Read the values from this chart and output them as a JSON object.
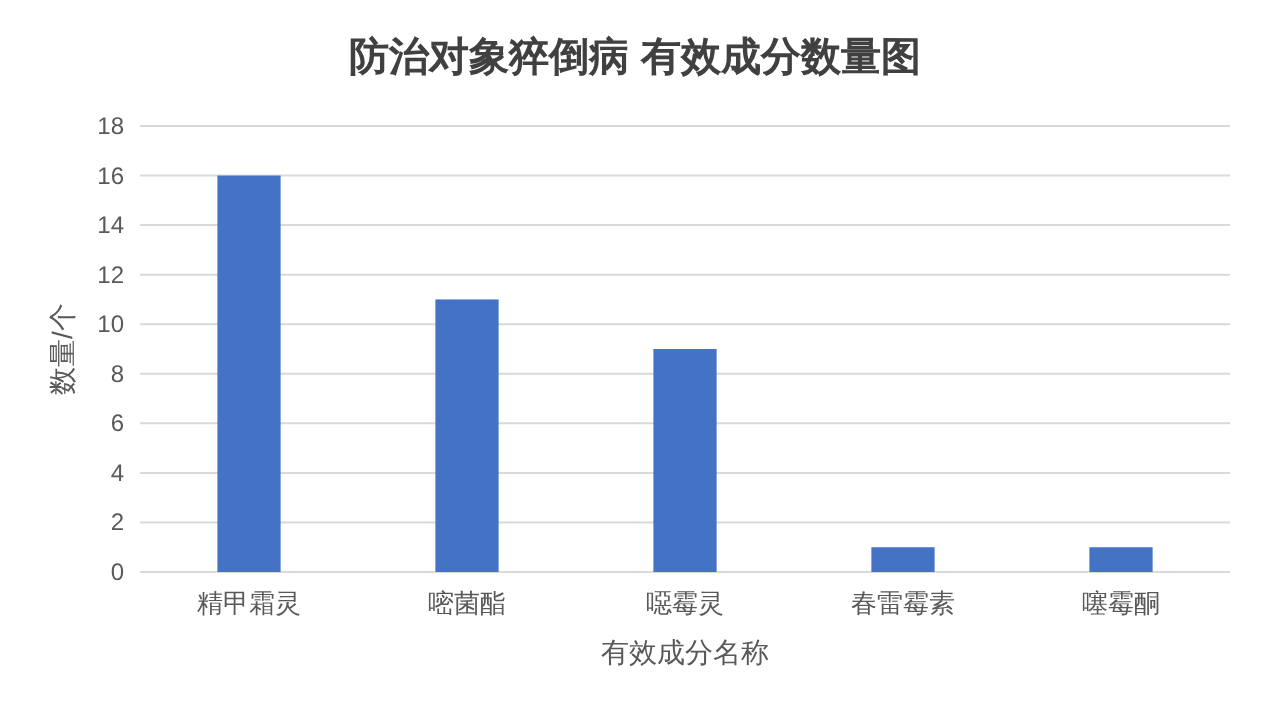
{
  "chart_data": {
    "type": "bar",
    "title": "防治对象猝倒病 有效成分数量图",
    "xlabel": "有效成分名称",
    "ylabel": "数量/个",
    "categories": [
      "精甲霜灵",
      "嘧菌酯",
      "噁霉灵",
      "春雷霉素",
      "噻霉酮"
    ],
    "values": [
      16,
      11,
      9,
      1,
      1
    ],
    "color": "#4472c4",
    "ylim": [
      0,
      18
    ],
    "yticks": [
      0,
      2,
      4,
      6,
      8,
      10,
      12,
      14,
      16,
      18
    ],
    "grid": "y"
  }
}
